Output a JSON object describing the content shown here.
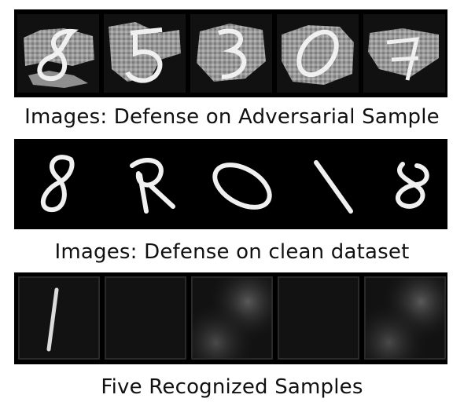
{
  "figure": {
    "captions": {
      "adversarial": "Images: Defense on Adversarial Sample",
      "clean": "Images: Defense on clean dataset",
      "recognized": "Five Recognized Samples"
    },
    "colors": {
      "background": "#ffffff",
      "strip": "#000000",
      "adversarial_gray": "#9a9a9a",
      "digit_white": "#f0f0f0"
    },
    "panels": {
      "adversarial": {
        "count": 5,
        "shown_digits": [
          "8",
          "5",
          "3",
          "0",
          "7"
        ]
      },
      "clean": {
        "count": 5,
        "shown_digits": [
          "8",
          "2",
          "0",
          "1",
          "8"
        ]
      },
      "recognized": {
        "count": 5,
        "shown_digits": [
          "1",
          "",
          "",
          "",
          ""
        ]
      }
    }
  }
}
